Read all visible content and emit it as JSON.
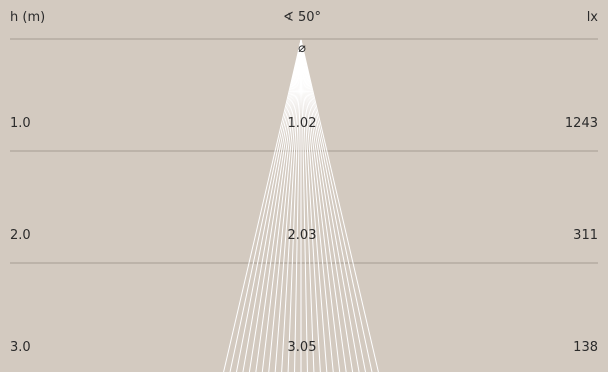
{
  "header": {
    "height_label": "h (m)",
    "angle_label": "∢ 50°",
    "lux_label": "lx"
  },
  "diameter_symbol": "⌀",
  "beam_angle_deg": 50,
  "rows": [
    {
      "height": "1.0",
      "diameter": "1.02",
      "lux": "1243"
    },
    {
      "height": "2.0",
      "diameter": "2.03",
      "lux": "311"
    },
    {
      "height": "3.0",
      "diameter": "3.05",
      "lux": "138"
    }
  ],
  "colors": {
    "background": "#d3cac0",
    "beam_lines": "#ffffff",
    "divider": "#a59c92",
    "text": "#2b2b2b"
  }
}
